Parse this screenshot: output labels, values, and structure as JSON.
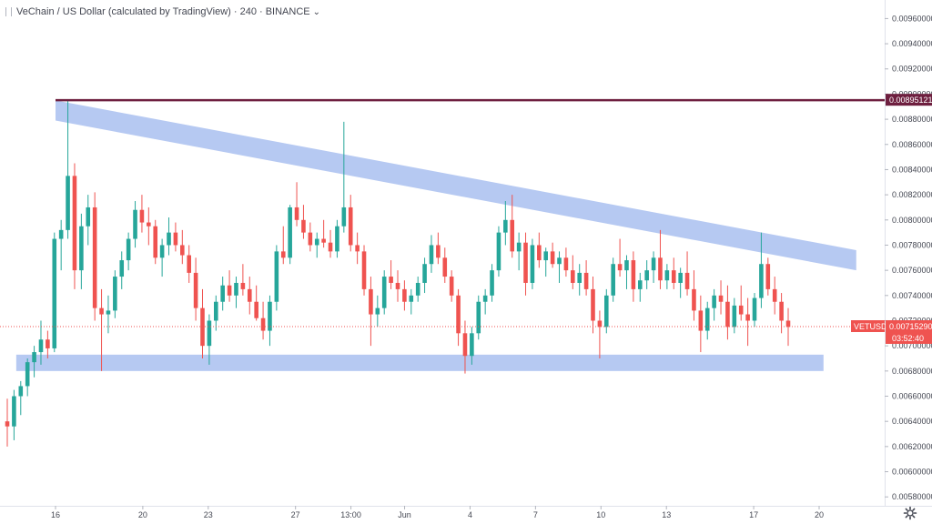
{
  "header": {
    "title": "VeChain / US Dollar (calculated by TradingView) · 240 · BINANCE",
    "chevron": "⌄"
  },
  "colors": {
    "up": "#26a69a",
    "down": "#ef5350",
    "band": "#a9bff0",
    "resistance": "#6e1f3f",
    "price_line": "#ef5350",
    "axis_border": "#e0e3eb"
  },
  "chart_data": {
    "type": "candlestick",
    "symbol": "VETUSD",
    "interval": "240",
    "exchange": "BINANCE",
    "ylim": [
      0.0057,
      0.00972
    ],
    "y_ticks": [
      "0.00960000",
      "0.00940000",
      "0.00920000",
      "0.00900000",
      "0.00880000",
      "0.00860000",
      "0.00840000",
      "0.00820000",
      "0.00800000",
      "0.00780000",
      "0.00760000",
      "0.00740000",
      "0.00720000",
      "0.00700000",
      "0.00680000",
      "0.00660000",
      "0.00640000",
      "0.00620000",
      "0.00600000",
      "0.00580000"
    ],
    "x_ticks": [
      {
        "label": "16",
        "day": 15
      },
      {
        "label": "20",
        "day": 19
      },
      {
        "label": "23",
        "day": 22
      },
      {
        "label": "27",
        "day": 26
      },
      {
        "label": "13:00",
        "day": 28.54
      },
      {
        "label": "Jun",
        "day": 31
      },
      {
        "label": "4",
        "day": 34
      },
      {
        "label": "7",
        "day": 37
      },
      {
        "label": "10",
        "day": 40
      },
      {
        "label": "13",
        "day": 43
      },
      {
        "label": "17",
        "day": 47
      },
      {
        "label": "20",
        "day": 50
      }
    ],
    "candles": [
      [
        0.0064,
        0.00658,
        0.0062,
        0.00636
      ],
      [
        0.00636,
        0.00665,
        0.00625,
        0.0066
      ],
      [
        0.0066,
        0.00672,
        0.00645,
        0.00668
      ],
      [
        0.00668,
        0.0069,
        0.0066,
        0.00687
      ],
      [
        0.00687,
        0.007,
        0.00675,
        0.00695
      ],
      [
        0.00695,
        0.0072,
        0.00685,
        0.00705
      ],
      [
        0.00705,
        0.00712,
        0.0069,
        0.00698
      ],
      [
        0.00698,
        0.0079,
        0.00695,
        0.00785
      ],
      [
        0.00785,
        0.008,
        0.0076,
        0.00792
      ],
      [
        0.00792,
        0.00895,
        0.00785,
        0.00835
      ],
      [
        0.00835,
        0.00845,
        0.00745,
        0.0076
      ],
      [
        0.0076,
        0.00805,
        0.00745,
        0.00795
      ],
      [
        0.00795,
        0.0082,
        0.0078,
        0.0081
      ],
      [
        0.0081,
        0.00822,
        0.0072,
        0.0073
      ],
      [
        0.0073,
        0.00745,
        0.0068,
        0.00725
      ],
      [
        0.00725,
        0.0074,
        0.0071,
        0.00728
      ],
      [
        0.00728,
        0.0076,
        0.00722,
        0.00755
      ],
      [
        0.00755,
        0.00775,
        0.00745,
        0.00768
      ],
      [
        0.00768,
        0.0079,
        0.0076,
        0.00785
      ],
      [
        0.00785,
        0.00815,
        0.00778,
        0.00808
      ],
      [
        0.00808,
        0.0082,
        0.0079,
        0.00798
      ],
      [
        0.00798,
        0.0081,
        0.0078,
        0.00795
      ],
      [
        0.00795,
        0.008,
        0.00765,
        0.0077
      ],
      [
        0.0077,
        0.00785,
        0.00755,
        0.0078
      ],
      [
        0.0078,
        0.00802,
        0.00772,
        0.0079
      ],
      [
        0.0079,
        0.00798,
        0.00775,
        0.0078
      ],
      [
        0.0078,
        0.00792,
        0.00765,
        0.00772
      ],
      [
        0.00772,
        0.0078,
        0.0075,
        0.00758
      ],
      [
        0.00758,
        0.0077,
        0.0072,
        0.0073
      ],
      [
        0.0073,
        0.00745,
        0.0069,
        0.007
      ],
      [
        0.007,
        0.00725,
        0.00685,
        0.0072
      ],
      [
        0.0072,
        0.0074,
        0.00712,
        0.00735
      ],
      [
        0.00735,
        0.00755,
        0.00728,
        0.00748
      ],
      [
        0.00748,
        0.0076,
        0.00735,
        0.0074
      ],
      [
        0.0074,
        0.00755,
        0.0073,
        0.0075
      ],
      [
        0.0075,
        0.00765,
        0.0074,
        0.00745
      ],
      [
        0.00745,
        0.00755,
        0.00725,
        0.00735
      ],
      [
        0.00735,
        0.00748,
        0.0072,
        0.00722
      ],
      [
        0.00722,
        0.00735,
        0.00705,
        0.00712
      ],
      [
        0.00712,
        0.0074,
        0.007,
        0.00735
      ],
      [
        0.00735,
        0.0078,
        0.00728,
        0.00775
      ],
      [
        0.00775,
        0.00795,
        0.00765,
        0.0077
      ],
      [
        0.0077,
        0.00812,
        0.00765,
        0.0081
      ],
      [
        0.0081,
        0.0083,
        0.00795,
        0.008
      ],
      [
        0.008,
        0.00812,
        0.00785,
        0.0079
      ],
      [
        0.0079,
        0.00798,
        0.00775,
        0.0078
      ],
      [
        0.0078,
        0.0079,
        0.0077,
        0.00785
      ],
      [
        0.00785,
        0.008,
        0.00778,
        0.00782
      ],
      [
        0.00782,
        0.00792,
        0.0077,
        0.00775
      ],
      [
        0.00775,
        0.008,
        0.0077,
        0.00795
      ],
      [
        0.00795,
        0.00878,
        0.0079,
        0.0081
      ],
      [
        0.0081,
        0.0082,
        0.00775,
        0.0078
      ],
      [
        0.0078,
        0.0079,
        0.00765,
        0.00775
      ],
      [
        0.00775,
        0.0078,
        0.0074,
        0.00745
      ],
      [
        0.00745,
        0.00755,
        0.007,
        0.00725
      ],
      [
        0.00725,
        0.0074,
        0.00715,
        0.0073
      ],
      [
        0.0073,
        0.0076,
        0.00725,
        0.00755
      ],
      [
        0.00755,
        0.00768,
        0.00745,
        0.0075
      ],
      [
        0.0075,
        0.0076,
        0.00735,
        0.00745
      ],
      [
        0.00745,
        0.00752,
        0.00728,
        0.00735
      ],
      [
        0.00735,
        0.00745,
        0.00725,
        0.0074
      ],
      [
        0.0074,
        0.00755,
        0.00735,
        0.0075
      ],
      [
        0.0075,
        0.0077,
        0.00742,
        0.00765
      ],
      [
        0.00765,
        0.00788,
        0.00758,
        0.0078
      ],
      [
        0.0078,
        0.0079,
        0.00765,
        0.0077
      ],
      [
        0.0077,
        0.00778,
        0.0075,
        0.00755
      ],
      [
        0.00755,
        0.0076,
        0.00735,
        0.0074
      ],
      [
        0.0074,
        0.00745,
        0.007,
        0.0071
      ],
      [
        0.0071,
        0.0072,
        0.00678,
        0.00692
      ],
      [
        0.00692,
        0.00715,
        0.00685,
        0.0071
      ],
      [
        0.0071,
        0.0074,
        0.00705,
        0.00735
      ],
      [
        0.00735,
        0.00745,
        0.00725,
        0.0074
      ],
      [
        0.0074,
        0.00765,
        0.00735,
        0.0076
      ],
      [
        0.0076,
        0.00795,
        0.00755,
        0.0079
      ],
      [
        0.0079,
        0.00815,
        0.0078,
        0.008
      ],
      [
        0.008,
        0.0082,
        0.0077,
        0.00775
      ],
      [
        0.00775,
        0.0079,
        0.0076,
        0.00782
      ],
      [
        0.00782,
        0.0079,
        0.0074,
        0.0075
      ],
      [
        0.0075,
        0.00785,
        0.00745,
        0.0078
      ],
      [
        0.0078,
        0.0079,
        0.00762,
        0.00768
      ],
      [
        0.00768,
        0.00778,
        0.00755,
        0.00775
      ],
      [
        0.00775,
        0.00782,
        0.00762,
        0.00765
      ],
      [
        0.00765,
        0.00775,
        0.0075,
        0.0077
      ],
      [
        0.0077,
        0.00778,
        0.00755,
        0.0076
      ],
      [
        0.0076,
        0.00772,
        0.00745,
        0.0075
      ],
      [
        0.0075,
        0.00765,
        0.0074,
        0.00758
      ],
      [
        0.00758,
        0.00768,
        0.0074,
        0.00745
      ],
      [
        0.00745,
        0.00755,
        0.0071,
        0.0072
      ],
      [
        0.0072,
        0.00728,
        0.0069,
        0.00715
      ],
      [
        0.00715,
        0.00745,
        0.0071,
        0.0074
      ],
      [
        0.0074,
        0.0077,
        0.00735,
        0.00765
      ],
      [
        0.00765,
        0.00785,
        0.00755,
        0.0076
      ],
      [
        0.0076,
        0.00772,
        0.00745,
        0.00768
      ],
      [
        0.00768,
        0.00775,
        0.00735,
        0.00745
      ],
      [
        0.00745,
        0.00758,
        0.00735,
        0.00752
      ],
      [
        0.00752,
        0.00768,
        0.00745,
        0.0076
      ],
      [
        0.0076,
        0.00775,
        0.0075,
        0.0077
      ],
      [
        0.0077,
        0.00792,
        0.00745,
        0.00752
      ],
      [
        0.00752,
        0.00765,
        0.00745,
        0.0076
      ],
      [
        0.0076,
        0.0077,
        0.00745,
        0.0075
      ],
      [
        0.0075,
        0.00762,
        0.00738,
        0.00758
      ],
      [
        0.00758,
        0.00775,
        0.0074,
        0.00745
      ],
      [
        0.00745,
        0.0076,
        0.0072,
        0.00728
      ],
      [
        0.00728,
        0.0074,
        0.00695,
        0.00712
      ],
      [
        0.00712,
        0.00735,
        0.00705,
        0.0073
      ],
      [
        0.0073,
        0.00745,
        0.0072,
        0.0074
      ],
      [
        0.0074,
        0.00752,
        0.00725,
        0.00735
      ],
      [
        0.00735,
        0.00748,
        0.00705,
        0.00715
      ],
      [
        0.00715,
        0.00738,
        0.0071,
        0.00732
      ],
      [
        0.00732,
        0.00748,
        0.0072,
        0.00725
      ],
      [
        0.00725,
        0.00738,
        0.007,
        0.0072
      ],
      [
        0.0072,
        0.00742,
        0.00715,
        0.00738
      ],
      [
        0.00738,
        0.0079,
        0.0073,
        0.00765
      ],
      [
        0.00765,
        0.0077,
        0.0074,
        0.00745
      ],
      [
        0.00745,
        0.00755,
        0.00725,
        0.00735
      ],
      [
        0.00735,
        0.00742,
        0.0071,
        0.0072
      ],
      [
        0.0072,
        0.0073,
        0.007,
        0.00715
      ]
    ],
    "annotations": {
      "resistance_level": 0.00895121,
      "descending_band": {
        "start_day": 15,
        "end_day": 51.7,
        "upper_start": 0.00895,
        "lower_start": 0.00879,
        "upper_end": 0.00776,
        "lower_end": 0.0076
      },
      "support_band": {
        "start_day": 13.2,
        "end_day": 50.2,
        "top": 0.00693,
        "bottom": 0.0068
      }
    },
    "last_price": 0.0071529,
    "price_label": "VETUSD",
    "price_text": "0.00715290",
    "countdown": "03:52:40",
    "resistance_text": "0.00895121"
  }
}
